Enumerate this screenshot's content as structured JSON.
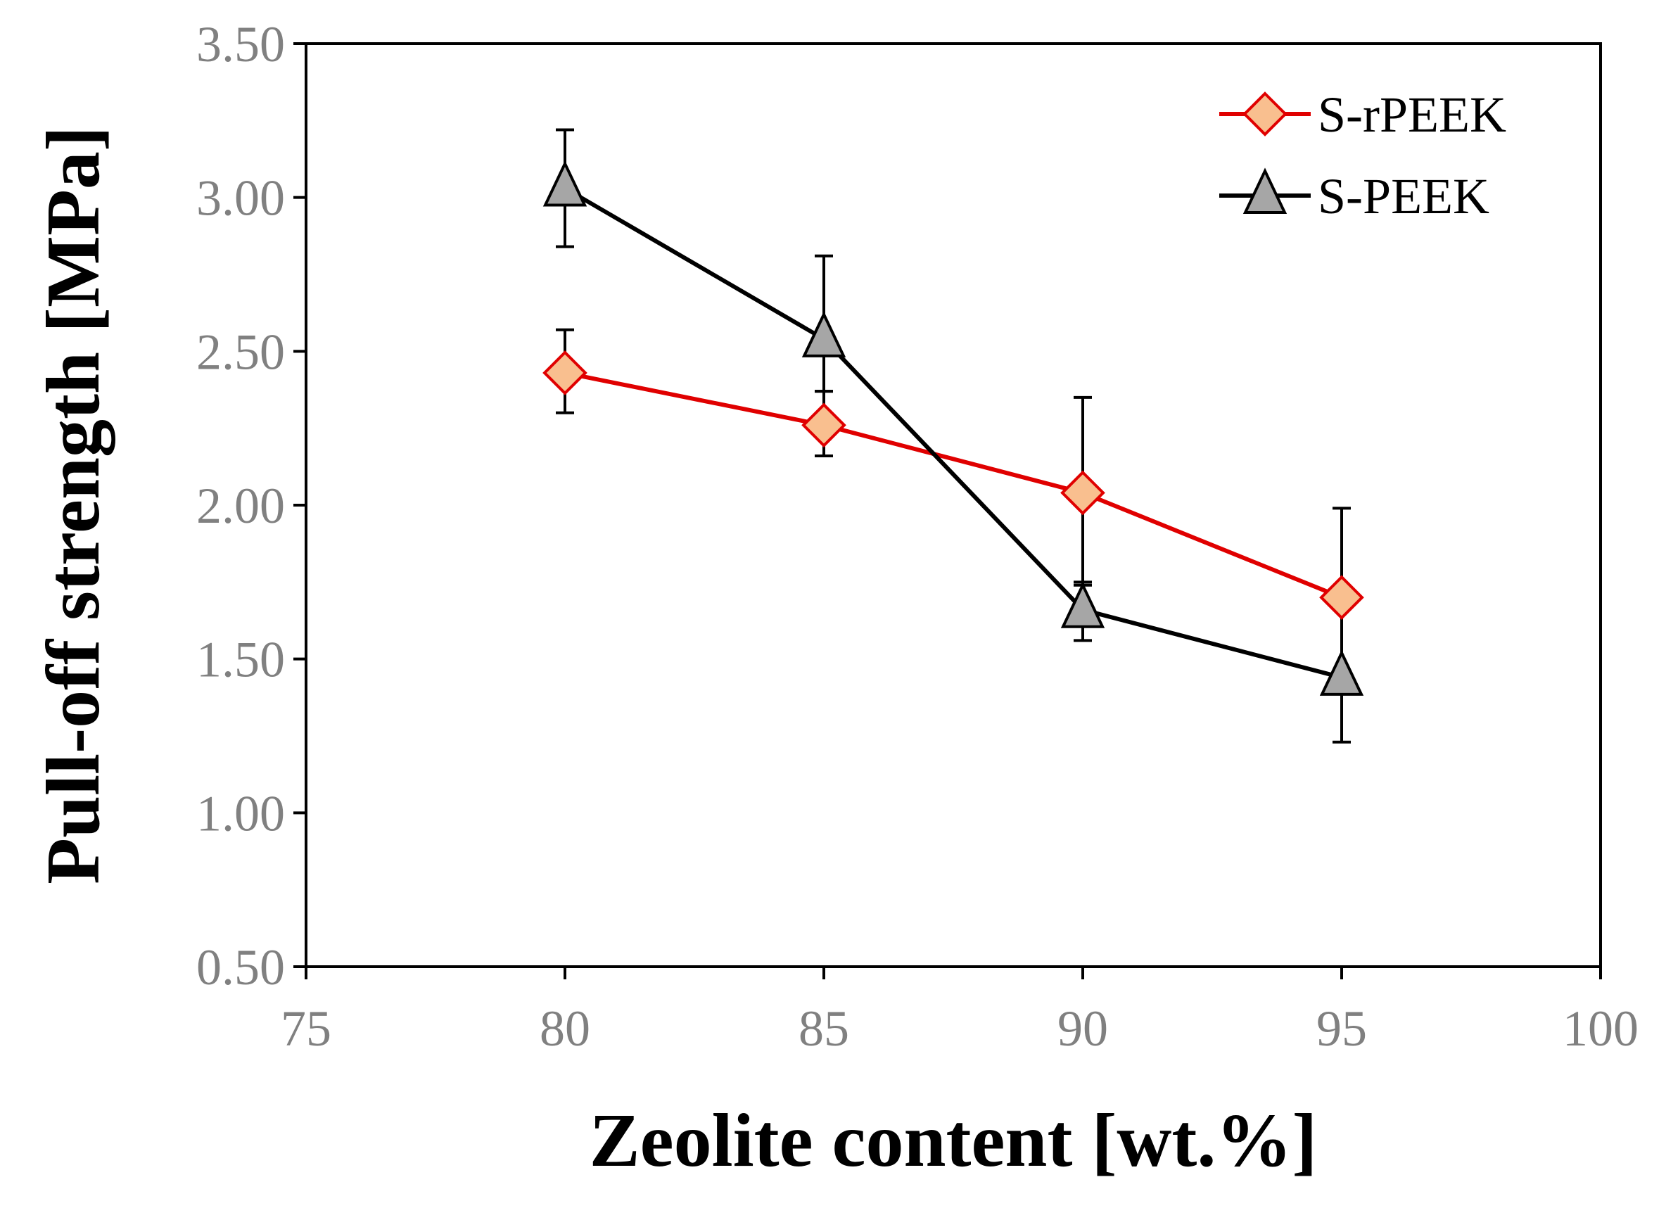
{
  "chart_data": {
    "type": "line",
    "title": "",
    "xlabel": "Zeolite content [wt.%]",
    "ylabel": "Pull-off strength [MPa]",
    "xlim": [
      75,
      100
    ],
    "ylim": [
      0.5,
      3.5
    ],
    "xticks": [
      75,
      80,
      85,
      90,
      95,
      100
    ],
    "xtick_labels": [
      "75",
      "80",
      "85",
      "90",
      "95",
      "100"
    ],
    "yticks": [
      0.5,
      1.0,
      1.5,
      2.0,
      2.5,
      3.0,
      3.5
    ],
    "ytick_labels": [
      "0.50",
      "1.00",
      "1.50",
      "2.00",
      "2.50",
      "3.00",
      "3.50"
    ],
    "grid": false,
    "legend_position": "top-right",
    "series": [
      {
        "name": "S-rPEEK",
        "marker": "diamond",
        "line_color": "#e00000",
        "marker_fill": "#f9bf8f",
        "marker_stroke": "#e00000",
        "x": [
          80,
          85,
          90,
          95
        ],
        "y": [
          2.43,
          2.26,
          2.04,
          1.7
        ],
        "error_upper": [
          0.14,
          0.11,
          0.31,
          0.29
        ],
        "error_lower": [
          0.13,
          0.1,
          0.3,
          0.29
        ]
      },
      {
        "name": "S-PEEK",
        "marker": "triangle",
        "line_color": "#000000",
        "marker_fill": "#a6a6a6",
        "marker_stroke": "#000000",
        "x": [
          80,
          85,
          90,
          95
        ],
        "y": [
          3.03,
          2.54,
          1.66,
          1.44
        ],
        "error_upper": [
          0.19,
          0.27,
          0.09,
          0.0
        ],
        "error_lower": [
          0.19,
          0.17,
          0.1,
          0.21
        ]
      }
    ]
  }
}
